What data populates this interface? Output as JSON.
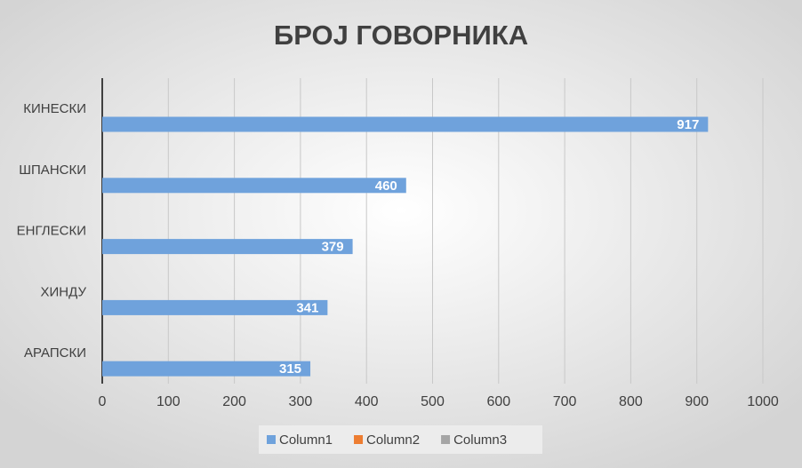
{
  "chart_data": {
    "type": "hbar",
    "title": "БРОЈ ГОВОРНИКА",
    "categories": [
      "КИНЕСКИ",
      "ШПАНСКИ",
      "ЕНГЛЕСКИ",
      "ХИНДУ",
      "АРАПСКИ"
    ],
    "series": [
      {
        "name": "Column3",
        "color": "#a5a5a5",
        "values": [
          null,
          null,
          null,
          null,
          null
        ]
      },
      {
        "name": "Column2",
        "color": "#ed7d31",
        "values": [
          null,
          null,
          null,
          null,
          null
        ]
      },
      {
        "name": "Column1",
        "color": "#6fa2dc",
        "values": [
          917,
          460,
          379,
          341,
          315
        ]
      }
    ],
    "xlim": [
      0,
      1000
    ],
    "xticks": [
      0,
      100,
      200,
      300,
      400,
      500,
      600,
      700,
      800,
      900,
      1000
    ],
    "grid": true,
    "legend": "bottom"
  }
}
